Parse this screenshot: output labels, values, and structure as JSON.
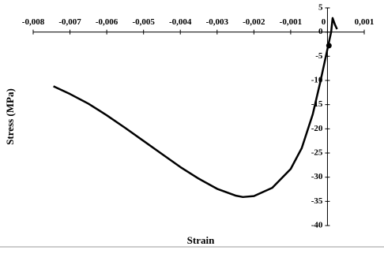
{
  "chart_data": {
    "type": "line",
    "xlabel": "Strain",
    "ylabel": "Stress (MPa)",
    "xlim": [
      -0.008,
      0.001
    ],
    "ylim": [
      -40,
      5
    ],
    "xticks": [
      {
        "value": -0.008,
        "label": "-0,008"
      },
      {
        "value": -0.007,
        "label": "-0,007"
      },
      {
        "value": -0.006,
        "label": "-0,006"
      },
      {
        "value": -0.005,
        "label": "-0,005"
      },
      {
        "value": -0.004,
        "label": "-0,004"
      },
      {
        "value": -0.003,
        "label": "-0,003"
      },
      {
        "value": -0.002,
        "label": "-0,002"
      },
      {
        "value": -0.001,
        "label": "-0,001"
      },
      0,
      {
        "value": 0.001,
        "label": "0,001"
      }
    ],
    "yticks": [
      5,
      0,
      -5,
      -10,
      -15,
      -20,
      -25,
      -30,
      -35,
      -40
    ],
    "series": [
      {
        "color": "#000000",
        "x": [
          -0.00745,
          -0.007,
          -0.0065,
          -0.006,
          -0.0055,
          -0.005,
          -0.0045,
          -0.004,
          -0.0035,
          -0.003,
          -0.0025,
          -0.0023,
          -0.002,
          -0.0015,
          -0.001,
          -0.0007,
          -0.0004,
          -0.0002,
          0,
          0.0001,
          0.00014,
          0.0002,
          0.00026
        ],
        "values": [
          -11.2,
          -12.8,
          -14.8,
          -17.2,
          -19.8,
          -22.5,
          -25.2,
          -27.9,
          -30.3,
          -32.4,
          -33.8,
          -34.1,
          -33.9,
          -32.2,
          -28.3,
          -24,
          -17,
          -10.5,
          -3.5,
          0,
          2.9,
          1.6,
          0.6
        ]
      },
      {
        "color": "#000000",
        "marker": true,
        "x": [
          4e-05
        ],
        "values": [
          -2.8
        ]
      }
    ]
  }
}
